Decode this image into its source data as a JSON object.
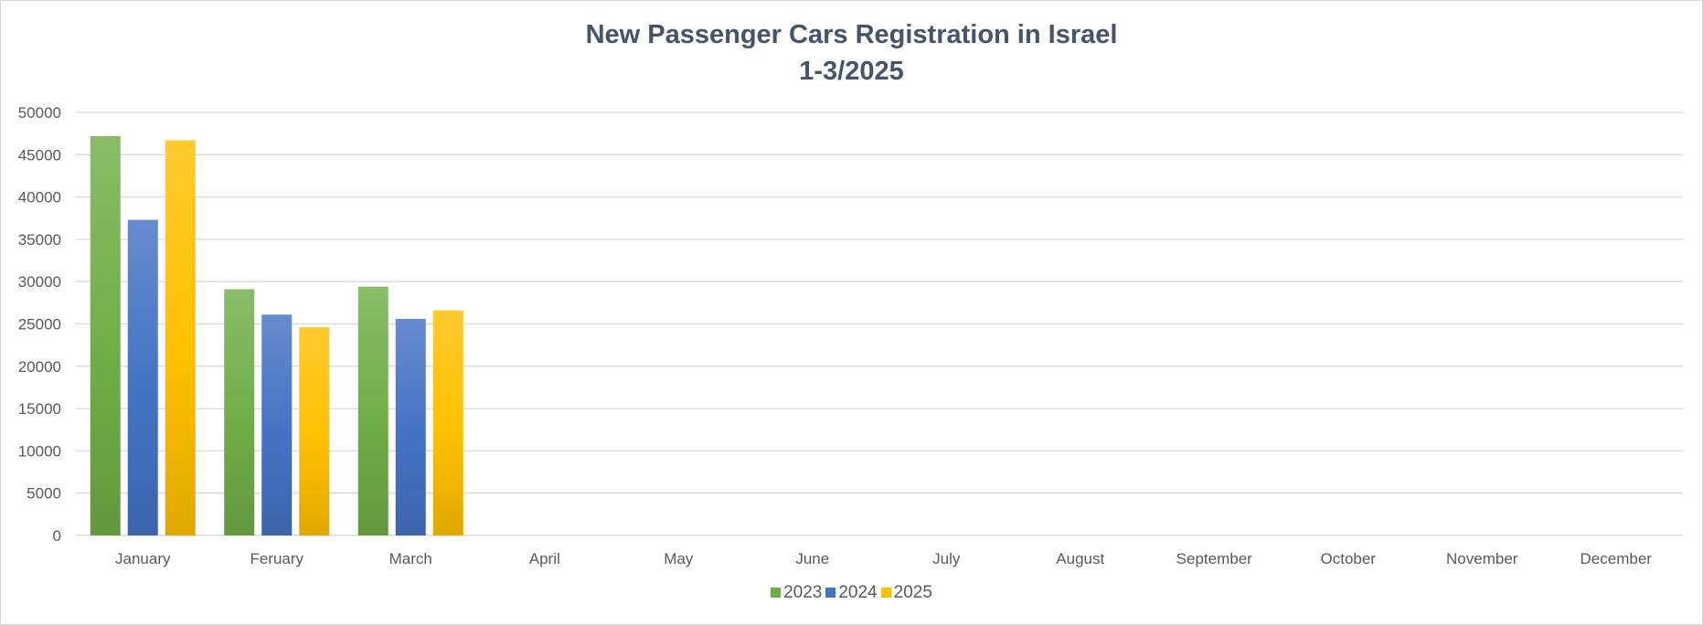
{
  "chart_data": {
    "type": "bar",
    "title": "New Passenger Cars Registration in Israel",
    "subtitle": "1-3/2025",
    "categories": [
      "January",
      "Feruary",
      "March",
      "April",
      "May",
      "June",
      "July",
      "August",
      "September",
      "October",
      "November",
      "December"
    ],
    "series": [
      {
        "name": "2023",
        "color": "#70ad47",
        "values": [
          47200,
          29100,
          29400,
          null,
          null,
          null,
          null,
          null,
          null,
          null,
          null,
          null
        ]
      },
      {
        "name": "2024",
        "color": "#4472c4",
        "values": [
          37300,
          26100,
          25600,
          null,
          null,
          null,
          null,
          null,
          null,
          null,
          null,
          null
        ]
      },
      {
        "name": "2025",
        "color": "#ffc000",
        "values": [
          46700,
          24600,
          26600,
          null,
          null,
          null,
          null,
          null,
          null,
          null,
          null,
          null
        ]
      }
    ],
    "yticks": [
      0,
      5000,
      10000,
      15000,
      20000,
      25000,
      30000,
      35000,
      40000,
      45000,
      50000
    ],
    "ylim": [
      0,
      50000
    ],
    "grid": true,
    "legend_position": "bottom"
  }
}
